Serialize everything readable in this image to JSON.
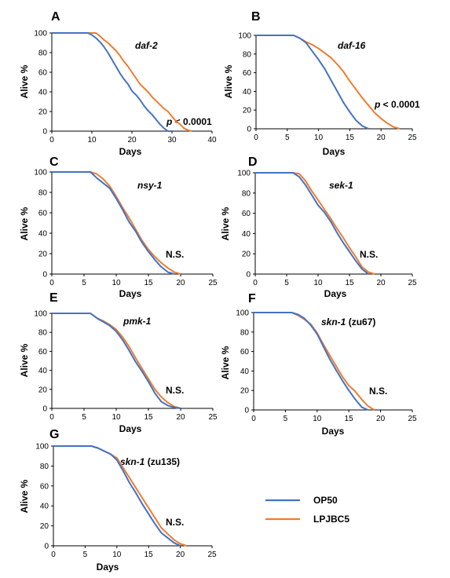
{
  "legend": {
    "items": [
      {
        "label": "OP50",
        "color": "#4472C4"
      },
      {
        "label": "LPJBC5",
        "color": "#ED7D31"
      }
    ]
  },
  "chart_data": [
    {
      "type": "line",
      "letter": "A",
      "gene": "daf-2",
      "gene_suffix": "",
      "annotation": {
        "prefix": "p",
        "text": " < 0.0001"
      },
      "xlabel": "Days",
      "ylabel": "Alive %",
      "xlim": [
        0,
        40
      ],
      "ylim": [
        0,
        100
      ],
      "xticks": [
        0,
        10,
        20,
        30,
        40
      ],
      "yticks": [
        0,
        20,
        40,
        60,
        80,
        100
      ],
      "series": [
        {
          "name": "OP50",
          "color": "#4472C4",
          "x": [
            0,
            9,
            10,
            11,
            12,
            13,
            14,
            15,
            16,
            17,
            18,
            19,
            20,
            21,
            22,
            23,
            24,
            25,
            26,
            27,
            28,
            29,
            30
          ],
          "y": [
            100,
            100,
            98,
            95,
            91,
            86,
            80,
            73,
            66,
            59,
            53,
            48,
            41,
            37,
            32,
            26,
            21,
            17,
            12,
            7,
            3,
            0,
            0
          ]
        },
        {
          "name": "LPJBC5",
          "color": "#ED7D31",
          "x": [
            0,
            11,
            12,
            13,
            14,
            15,
            16,
            17,
            18,
            19,
            20,
            21,
            22,
            23,
            24,
            25,
            26,
            27,
            28,
            29,
            30,
            31,
            32,
            33,
            34,
            35
          ],
          "y": [
            100,
            100,
            97,
            93,
            90,
            86,
            82,
            77,
            71,
            66,
            60,
            54,
            48,
            44,
            40,
            35,
            31,
            27,
            23,
            20,
            15,
            10,
            7,
            3,
            1,
            0
          ]
        }
      ]
    },
    {
      "type": "line",
      "letter": "B",
      "gene": "daf-16",
      "gene_suffix": "",
      "annotation": {
        "prefix": "p",
        "text": " < 0.0001"
      },
      "xlabel": "Days",
      "ylabel": "Alive %",
      "xlim": [
        0,
        25
      ],
      "ylim": [
        0,
        100
      ],
      "xticks": [
        0,
        5,
        10,
        15,
        20,
        25
      ],
      "yticks": [
        0,
        20,
        40,
        60,
        80,
        100
      ],
      "series": [
        {
          "name": "OP50",
          "color": "#4472C4",
          "x": [
            0,
            6,
            7,
            8,
            9,
            10,
            11,
            12,
            13,
            14,
            15,
            16,
            17,
            18
          ],
          "y": [
            100,
            100,
            97,
            92,
            83,
            74,
            64,
            52,
            40,
            28,
            18,
            9,
            3,
            0
          ]
        },
        {
          "name": "LPJBC5",
          "color": "#ED7D31",
          "x": [
            0,
            6,
            7,
            8,
            9,
            10,
            11,
            12,
            13,
            14,
            15,
            16,
            17,
            18,
            19,
            20,
            21,
            22,
            23
          ],
          "y": [
            100,
            100,
            97,
            93,
            90,
            86,
            81,
            76,
            69,
            61,
            51,
            42,
            33,
            25,
            17,
            11,
            6,
            2,
            0
          ]
        }
      ]
    },
    {
      "type": "line",
      "letter": "C",
      "gene": "nsy-1",
      "gene_suffix": "",
      "annotation": {
        "prefix": "",
        "text": "N.S."
      },
      "xlabel": "Days",
      "ylabel": "Alive %",
      "xlim": [
        0,
        25
      ],
      "ylim": [
        0,
        100
      ],
      "xticks": [
        0,
        5,
        10,
        15,
        20,
        25
      ],
      "yticks": [
        0,
        20,
        40,
        60,
        80,
        100
      ],
      "series": [
        {
          "name": "OP50",
          "color": "#4472C4",
          "x": [
            0,
            6,
            7,
            8,
            9,
            10,
            11,
            12,
            13,
            14,
            15,
            16,
            17,
            18,
            19
          ],
          "y": [
            100,
            100,
            94,
            89,
            84,
            74,
            63,
            51,
            42,
            31,
            22,
            14,
            7,
            2,
            0
          ]
        },
        {
          "name": "LPJBC5",
          "color": "#ED7D31",
          "x": [
            0,
            6,
            7,
            8,
            9,
            10,
            11,
            12,
            13,
            14,
            15,
            16,
            17,
            18,
            19,
            20
          ],
          "y": [
            100,
            100,
            98,
            93,
            86,
            76,
            65,
            55,
            44,
            33,
            24,
            17,
            11,
            6,
            2,
            0
          ]
        }
      ]
    },
    {
      "type": "line",
      "letter": "D",
      "gene": "sek-1",
      "gene_suffix": "",
      "annotation": {
        "prefix": "",
        "text": "N.S."
      },
      "xlabel": "Days",
      "ylabel": "Alive %",
      "xlim": [
        0,
        25
      ],
      "ylim": [
        0,
        100
      ],
      "xticks": [
        0,
        5,
        10,
        15,
        20,
        25
      ],
      "yticks": [
        0,
        20,
        40,
        60,
        80,
        100
      ],
      "series": [
        {
          "name": "OP50",
          "color": "#4472C4",
          "x": [
            0,
            6,
            7,
            8,
            9,
            10,
            11,
            12,
            13,
            14,
            15,
            16,
            17,
            18
          ],
          "y": [
            100,
            100,
            96,
            88,
            78,
            68,
            61,
            52,
            41,
            31,
            22,
            13,
            5,
            0
          ]
        },
        {
          "name": "LPJBC5",
          "color": "#ED7D31",
          "x": [
            0,
            6,
            7,
            8,
            9,
            10,
            11,
            12,
            13,
            14,
            15,
            16,
            17,
            18,
            19
          ],
          "y": [
            100,
            100,
            99,
            92,
            82,
            73,
            64,
            55,
            45,
            36,
            26,
            17,
            7,
            2,
            0
          ]
        }
      ]
    },
    {
      "type": "line",
      "letter": "E",
      "gene": "pmk-1",
      "gene_suffix": "",
      "annotation": {
        "prefix": "",
        "text": "N.S."
      },
      "xlabel": "Days",
      "ylabel": "Alive %",
      "xlim": [
        0,
        25
      ],
      "ylim": [
        0,
        100
      ],
      "xticks": [
        0,
        5,
        10,
        15,
        20,
        25
      ],
      "yticks": [
        0,
        20,
        40,
        60,
        80,
        100
      ],
      "series": [
        {
          "name": "OP50",
          "color": "#4472C4",
          "x": [
            0,
            6,
            7,
            8,
            9,
            10,
            11,
            12,
            13,
            14,
            15,
            16,
            17,
            18,
            19,
            20
          ],
          "y": [
            100,
            100,
            95,
            91,
            87,
            81,
            72,
            61,
            49,
            39,
            28,
            16,
            7,
            3,
            1,
            0
          ]
        },
        {
          "name": "LPJBC5",
          "color": "#ED7D31",
          "x": [
            0,
            6,
            7,
            8,
            9,
            10,
            11,
            12,
            13,
            14,
            15,
            16,
            17,
            18,
            19,
            20
          ],
          "y": [
            100,
            100,
            95,
            92,
            88,
            83,
            75,
            65,
            53,
            42,
            31,
            20,
            12,
            6,
            2,
            0
          ]
        }
      ]
    },
    {
      "type": "line",
      "letter": "F",
      "gene": "skn-1",
      "gene_suffix": " (zu67)",
      "annotation": {
        "prefix": "",
        "text": "N.S."
      },
      "xlabel": "Days",
      "ylabel": "Alive %",
      "xlim": [
        0,
        25
      ],
      "ylim": [
        0,
        100
      ],
      "xticks": [
        0,
        5,
        10,
        15,
        20,
        25
      ],
      "yticks": [
        0,
        20,
        40,
        60,
        80,
        100
      ],
      "series": [
        {
          "name": "OP50",
          "color": "#4472C4",
          "x": [
            0,
            6,
            7,
            8,
            9,
            10,
            11,
            12,
            13,
            14,
            15,
            16,
            17,
            18
          ],
          "y": [
            100,
            100,
            98,
            94,
            87,
            78,
            65,
            52,
            41,
            30,
            20,
            11,
            3,
            0
          ]
        },
        {
          "name": "LPJBC5",
          "color": "#ED7D31",
          "x": [
            0,
            6,
            7,
            8,
            9,
            10,
            11,
            12,
            13,
            14,
            15,
            16,
            17,
            18,
            19
          ],
          "y": [
            100,
            100,
            97,
            93,
            88,
            79,
            67,
            56,
            45,
            34,
            25,
            19,
            11,
            4,
            0
          ]
        }
      ]
    },
    {
      "type": "line",
      "letter": "G",
      "gene": "skn-1",
      "gene_suffix": " (zu135)",
      "annotation": {
        "prefix": "",
        "text": "N.S."
      },
      "xlabel": "Days",
      "ylabel": "Alive %",
      "xlim": [
        0,
        25
      ],
      "ylim": [
        0,
        100
      ],
      "xticks": [
        0,
        5,
        10,
        15,
        20,
        25
      ],
      "yticks": [
        0,
        20,
        40,
        60,
        80,
        100
      ],
      "series": [
        {
          "name": "OP50",
          "color": "#4472C4",
          "x": [
            0,
            6,
            7,
            8,
            9,
            10,
            11,
            12,
            13,
            14,
            15,
            16,
            17,
            18,
            19,
            20
          ],
          "y": [
            100,
            100,
            98,
            95,
            92,
            86,
            75,
            63,
            53,
            42,
            32,
            22,
            13,
            8,
            3,
            0
          ]
        },
        {
          "name": "LPJBC5",
          "color": "#ED7D31",
          "x": [
            0,
            6,
            7,
            8,
            9,
            10,
            11,
            12,
            13,
            14,
            15,
            16,
            17,
            18,
            19,
            20,
            21
          ],
          "y": [
            100,
            100,
            98,
            95,
            92,
            88,
            78,
            68,
            58,
            48,
            38,
            28,
            18,
            12,
            6,
            2,
            0
          ]
        }
      ]
    }
  ]
}
